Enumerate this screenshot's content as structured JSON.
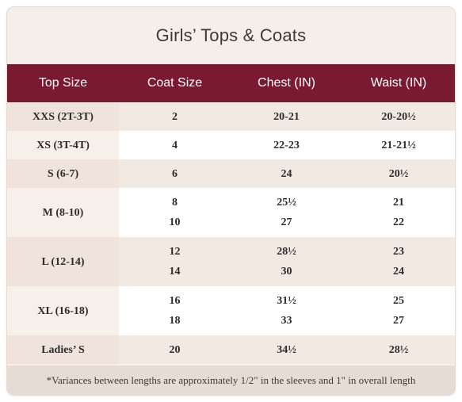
{
  "title": "Girls’ Tops & Coats",
  "headers": {
    "top_size": "Top Size",
    "coat_size": "Coat Size",
    "chest": "Chest (IN)",
    "waist": "Waist (IN)"
  },
  "rows": [
    {
      "top": "XXS (2T-3T)",
      "coat": [
        "2"
      ],
      "chest": [
        "20-21"
      ],
      "waist": [
        "20-20½"
      ]
    },
    {
      "top": "XS (3T-4T)",
      "coat": [
        "4"
      ],
      "chest": [
        "22-23"
      ],
      "waist": [
        "21-21½"
      ]
    },
    {
      "top": "S (6-7)",
      "coat": [
        "6"
      ],
      "chest": [
        "24"
      ],
      "waist": [
        "20½"
      ]
    },
    {
      "top": "M (8-10)",
      "coat": [
        "8",
        "10"
      ],
      "chest": [
        "25½",
        "27"
      ],
      "waist": [
        "21",
        "22"
      ]
    },
    {
      "top": "L (12-14)",
      "coat": [
        "12",
        "14"
      ],
      "chest": [
        "28½",
        "30"
      ],
      "waist": [
        "23",
        "24"
      ]
    },
    {
      "top": "XL (16-18)",
      "coat": [
        "16",
        "18"
      ],
      "chest": [
        "31½",
        "33"
      ],
      "waist": [
        "25",
        "27"
      ]
    },
    {
      "top": "Ladies’ S",
      "coat": [
        "20"
      ],
      "chest": [
        "34½"
      ],
      "waist": [
        "28½"
      ]
    }
  ],
  "footnote": "*Variances between lengths are approximately 1/2\" in the sleeves and 1\" in overall length",
  "colors": {
    "header_bg": "#7a1a30",
    "card_bg": "#f6eee9",
    "row_alt": "#f3e9e3"
  }
}
